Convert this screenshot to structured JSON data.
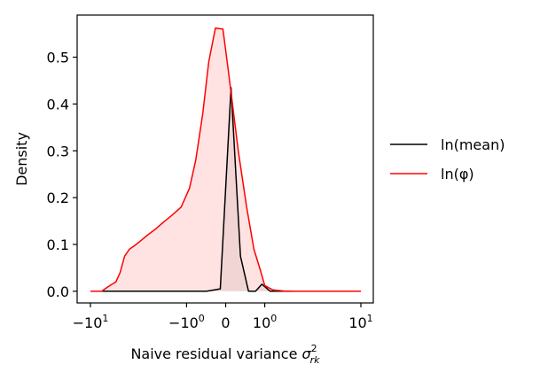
{
  "chart_data": {
    "type": "area",
    "title": "",
    "xlabel": "Naive residual variance σ²_rk",
    "xlabel_main": "Naive residual variance ",
    "xlabel_sym": "σ",
    "xlabel_sup": "2",
    "xlabel_sub": "rk",
    "ylabel": "Density",
    "xscale": "symlog",
    "ylim": [
      -0.025,
      0.59
    ],
    "x_ticks": [
      {
        "value": -10,
        "base": "−10",
        "exp": "1"
      },
      {
        "value": -1,
        "base": "−10",
        "exp": "0"
      },
      {
        "value": 0,
        "base": "0",
        "exp": ""
      },
      {
        "value": 1,
        "base": "10",
        "exp": "0"
      },
      {
        "value": 10,
        "base": "10",
        "exp": "1"
      }
    ],
    "y_ticks": [
      {
        "value": 0.0,
        "label": "0.0"
      },
      {
        "value": 0.1,
        "label": "0.1"
      },
      {
        "value": 0.2,
        "label": "0.2"
      },
      {
        "value": 0.3,
        "label": "0.3"
      },
      {
        "value": 0.4,
        "label": "0.4"
      },
      {
        "value": 0.5,
        "label": "0.5"
      }
    ],
    "series": [
      {
        "name": "ln(mean)",
        "color": "#000000",
        "fill": "#c8c8c8",
        "x": [
          -10,
          -8,
          -6,
          -4,
          -2,
          -1,
          -0.4,
          -0.1,
          0.1,
          0.3,
          0.5,
          0.7,
          0.9,
          1.2,
          1.6,
          2.5,
          4,
          10
        ],
        "y": [
          0,
          0,
          0,
          0,
          0,
          0,
          0,
          0.005,
          0.435,
          0.075,
          0,
          0,
          0.015,
          0,
          0,
          0,
          0,
          0
        ]
      },
      {
        "name": "ln(φ)",
        "color": "#ff0000",
        "fill": "#ffc8c8",
        "x": [
          -10,
          -8,
          -7.5,
          -7,
          -6.5,
          -6,
          -5.5,
          -5,
          -4.5,
          -4,
          -3.5,
          -3,
          -2.5,
          -2,
          -1.6,
          -1.2,
          -0.9,
          -0.7,
          -0.5,
          -0.35,
          -0.2,
          -0.05,
          0.05,
          0.25,
          0.45,
          0.65,
          0.85,
          1.0,
          1.3,
          1.8,
          2.5,
          3.5,
          5,
          10
        ],
        "y": [
          0,
          0,
          0.005,
          0.01,
          0.015,
          0.02,
          0.04,
          0.075,
          0.09,
          0.098,
          0.108,
          0.12,
          0.132,
          0.148,
          0.162,
          0.18,
          0.22,
          0.28,
          0.38,
          0.49,
          0.562,
          0.56,
          0.47,
          0.3,
          0.18,
          0.09,
          0.045,
          0.012,
          0.003,
          0.0005,
          0,
          0,
          0,
          0
        ]
      }
    ],
    "legend_position": "right"
  }
}
